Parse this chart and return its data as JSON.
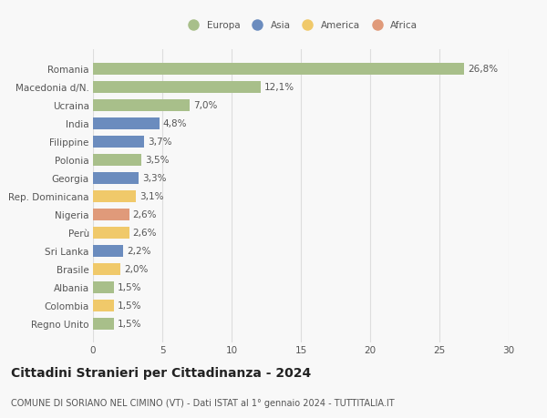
{
  "countries": [
    "Romania",
    "Macedonia d/N.",
    "Ucraina",
    "India",
    "Filippine",
    "Polonia",
    "Georgia",
    "Rep. Dominicana",
    "Nigeria",
    "Perù",
    "Sri Lanka",
    "Brasile",
    "Albania",
    "Colombia",
    "Regno Unito"
  ],
  "values": [
    26.8,
    12.1,
    7.0,
    4.8,
    3.7,
    3.5,
    3.3,
    3.1,
    2.6,
    2.6,
    2.2,
    2.0,
    1.5,
    1.5,
    1.5
  ],
  "labels": [
    "26,8%",
    "12,1%",
    "7,0%",
    "4,8%",
    "3,7%",
    "3,5%",
    "3,3%",
    "3,1%",
    "2,6%",
    "2,6%",
    "2,2%",
    "2,0%",
    "1,5%",
    "1,5%",
    "1,5%"
  ],
  "continents": [
    "Europa",
    "Europa",
    "Europa",
    "Asia",
    "Asia",
    "Europa",
    "Asia",
    "America",
    "Africa",
    "America",
    "Asia",
    "America",
    "Europa",
    "America",
    "Europa"
  ],
  "continent_colors": {
    "Europa": "#a8bf8a",
    "Asia": "#6b8cbe",
    "America": "#f0c96a",
    "Africa": "#e09a7a"
  },
  "legend_order": [
    "Europa",
    "Asia",
    "America",
    "Africa"
  ],
  "title": "Cittadini Stranieri per Cittadinanza - 2024",
  "subtitle": "COMUNE DI SORIANO NEL CIMINO (VT) - Dati ISTAT al 1° gennaio 2024 - TUTTITALIA.IT",
  "xlim": [
    0,
    30
  ],
  "xticks": [
    0,
    5,
    10,
    15,
    20,
    25,
    30
  ],
  "bg_color": "#f8f8f8",
  "grid_color": "#dddddd",
  "bar_height": 0.65,
  "label_fontsize": 7.5,
  "tick_fontsize": 7.5,
  "title_fontsize": 10,
  "subtitle_fontsize": 7
}
